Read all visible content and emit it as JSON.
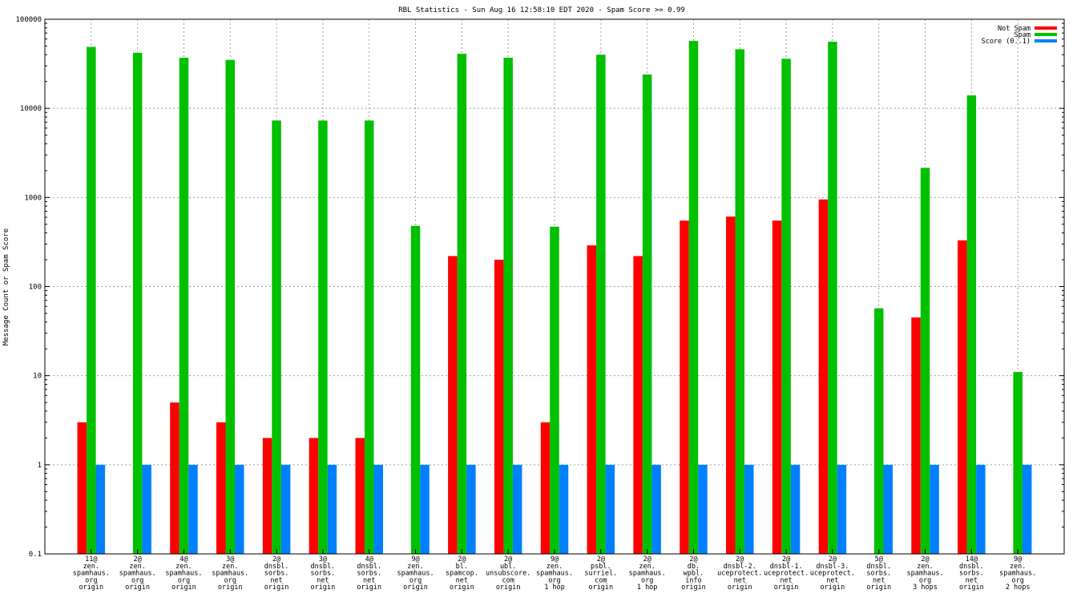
{
  "chart_data": {
    "type": "bar",
    "title": "RBL Statistics - Sun Aug 16 12:58:10 EDT 2020 - Spam Score >= 0.99",
    "ylabel": "Message Count or Spam Score",
    "xlabel": "",
    "yscale": "log",
    "ylim": [
      0.1,
      100000
    ],
    "ytick_labels": [
      "0.1",
      "1",
      "10",
      "100",
      "1000",
      "10000",
      "100000"
    ],
    "grid": true,
    "legend_position": "top-right",
    "categories": [
      [
        "11@",
        "zen.",
        "spamhaus.",
        "org",
        "origin"
      ],
      [
        "2@",
        "zen.",
        "spamhaus.",
        "org",
        "origin"
      ],
      [
        "4@",
        "zen.",
        "spamhaus.",
        "org",
        "origin"
      ],
      [
        "3@",
        "zen.",
        "spamhaus.",
        "org",
        "origin"
      ],
      [
        "2@",
        "dnsbl.",
        "sorbs.",
        "net",
        "origin"
      ],
      [
        "3@",
        "dnsbl.",
        "sorbs.",
        "net",
        "origin"
      ],
      [
        "4@",
        "dnsbl.",
        "sorbs.",
        "net",
        "origin"
      ],
      [
        "9@",
        "zen.",
        "spamhaus.",
        "org",
        "origin"
      ],
      [
        "2@",
        "bl.",
        "spamcop.",
        "net",
        "origin"
      ],
      [
        "2@",
        "ubl.",
        "unsubscore.",
        "com",
        "origin"
      ],
      [
        "9@",
        "zen.",
        "spamhaus.",
        "org",
        "1 hop"
      ],
      [
        "2@",
        "psbl.",
        "surriel.",
        "com",
        "origin"
      ],
      [
        "2@",
        "zen.",
        "spamhaus.",
        "org",
        "1 hop"
      ],
      [
        "2@",
        "db.",
        "wpbl.",
        "info",
        "origin"
      ],
      [
        "2@",
        "dnsbl-2.",
        "uceprotect.",
        "net",
        "origin"
      ],
      [
        "2@",
        "dnsbl-1.",
        "uceprotect.",
        "net",
        "origin"
      ],
      [
        "2@",
        "dnsbl-3.",
        "uceprotect.",
        "net",
        "origin"
      ],
      [
        "5@",
        "dnsbl.",
        "sorbs.",
        "net",
        "origin"
      ],
      [
        "2@",
        "zen.",
        "spamhaus.",
        "org",
        "3 hops"
      ],
      [
        "14@",
        "dnsbl.",
        "sorbs.",
        "net",
        "origin"
      ],
      [
        "9@",
        "zen.",
        "spamhaus.",
        "org",
        "2 hops"
      ]
    ],
    "series": [
      {
        "name": "Not Spam",
        "color": "#ff0000",
        "values": [
          3,
          null,
          5,
          3,
          2,
          2,
          2,
          null,
          220,
          200,
          3,
          290,
          220,
          550,
          610,
          550,
          950,
          null,
          45,
          330,
          null
        ]
      },
      {
        "name": "Spam",
        "color": "#00c000",
        "values": [
          49000,
          42000,
          37000,
          35000,
          7300,
          7300,
          7300,
          480,
          41000,
          37000,
          470,
          40000,
          24000,
          57000,
          46000,
          36000,
          56000,
          57,
          2150,
          14000,
          11
        ]
      },
      {
        "name": "Score (0..1)",
        "color": "#0080ff",
        "values": [
          1,
          1,
          1,
          1,
          1,
          1,
          1,
          1,
          1,
          1,
          1,
          1,
          1,
          1,
          1,
          1,
          1,
          1,
          1,
          1,
          1
        ]
      }
    ]
  }
}
